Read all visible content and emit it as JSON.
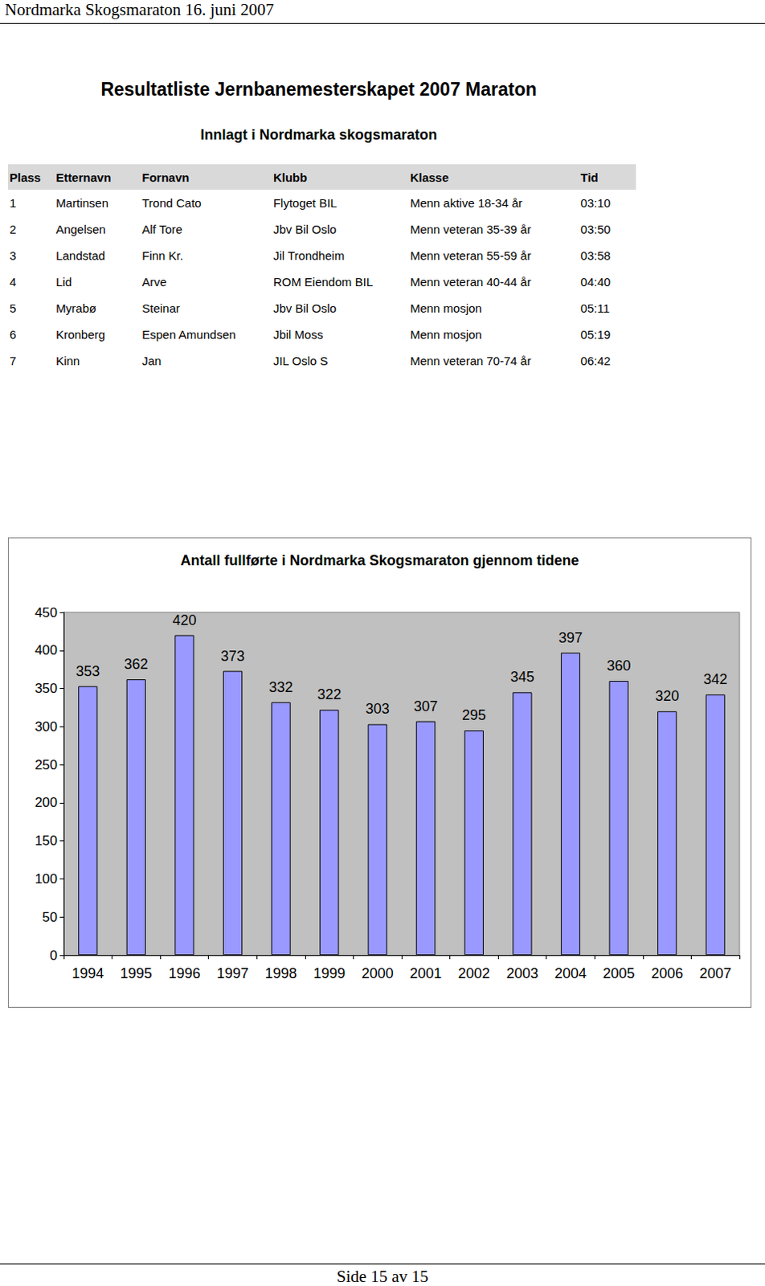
{
  "header": "Nordmarka Skogsmaraton 16. juni 2007",
  "title": "Resultatliste Jernbanemesterskapet 2007 Maraton",
  "subtitle": "Innlagt i Nordmarka skogsmaraton",
  "table": {
    "columns": [
      "Plass",
      "Etternavn",
      "Fornavn",
      "Klubb",
      "Klasse",
      "Tid"
    ],
    "rows": [
      [
        1,
        "Martinsen",
        "Trond Cato",
        "Flytoget BIL",
        "Menn aktive 18-34 år",
        "03:10"
      ],
      [
        2,
        "Angelsen",
        "Alf Tore",
        "Jbv Bil Oslo",
        "Menn veteran 35-39 år",
        "03:50"
      ],
      [
        3,
        "Landstad",
        "Finn Kr.",
        "Jil Trondheim",
        "Menn veteran 55-59 år",
        "03:58"
      ],
      [
        4,
        "Lid",
        "Arve",
        "ROM Eiendom BIL",
        "Menn veteran 40-44 år",
        "04:40"
      ],
      [
        5,
        "Myrabø",
        "Steinar",
        "Jbv Bil Oslo",
        "Menn mosjon",
        "05:11"
      ],
      [
        6,
        "Kronberg",
        "Espen Amundsen",
        "Jbil Moss",
        "Menn mosjon",
        "05:19"
      ],
      [
        7,
        "Kinn",
        "Jan",
        "JIL Oslo S",
        "Menn veteran 70-74 år",
        "06:42"
      ]
    ]
  },
  "chart_data": {
    "type": "bar",
    "title": "Antall fullførte i Nordmarka Skogsmaraton gjennom tidene",
    "categories": [
      "1994",
      "1995",
      "1996",
      "1997",
      "1998",
      "1999",
      "2000",
      "2001",
      "2002",
      "2003",
      "2004",
      "2005",
      "2006",
      "2007"
    ],
    "values": [
      353,
      362,
      420,
      373,
      332,
      322,
      303,
      307,
      295,
      345,
      397,
      360,
      320,
      342
    ],
    "color": "#9999ff",
    "ylim": [
      0,
      450
    ],
    "yticks": [
      0,
      50,
      100,
      150,
      200,
      250,
      300,
      350,
      400,
      450
    ],
    "grid": false,
    "data_labels": true
  },
  "footer": "Side 15 av 15"
}
